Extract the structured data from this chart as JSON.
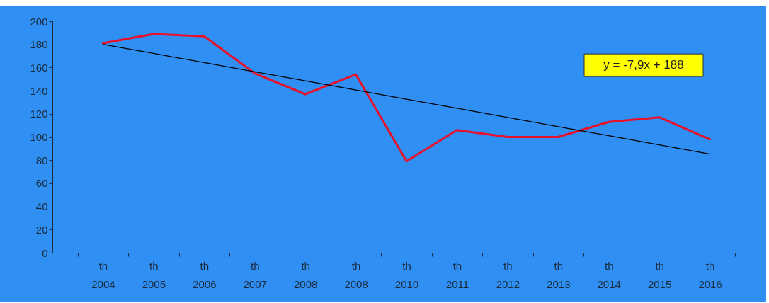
{
  "chart_data": {
    "type": "line",
    "categories": [
      "th\n2004",
      "th\n2005",
      "th\n2006",
      "th\n2007",
      "th\n2008",
      "th\n2008",
      "th\n2010",
      "th\n2011",
      "th\n2012",
      "th\n2013",
      "th\n2014",
      "th\n2015",
      "th\n2016"
    ],
    "series": [
      {
        "color": "#e8102a",
        "values": [
          181,
          189,
          187,
          155,
          137,
          154,
          79,
          106,
          100,
          100,
          113,
          117,
          98
        ]
      },
      {
        "type": "line",
        "color": "#000000",
        "values": [
          180.1,
          172.2,
          164.3,
          156.4,
          148.5,
          140.6,
          132.7,
          124.8,
          116.9,
          109,
          101.1,
          93.2,
          85.3
        ]
      }
    ],
    "ylim": [
      0,
      200
    ],
    "yticks": [
      0,
      20,
      40,
      60,
      80,
      100,
      120,
      140,
      160,
      180,
      200
    ],
    "annotations": [
      "y = -7,9x + 188"
    ],
    "grid": false,
    "marker": "none",
    "line_style": "solid"
  }
}
